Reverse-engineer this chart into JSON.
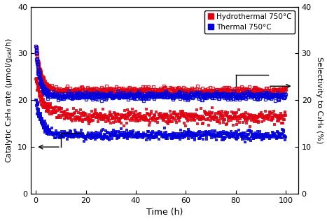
{
  "title": "",
  "xlabel": "Time (h)",
  "ylabel_left": "Catalytic C₂H₆ rate (μmol/g$_{cat}$/h)",
  "ylabel_right": "Selectivity to C₂H₆ (%)",
  "xlim": [
    -2,
    105
  ],
  "ylim_left": [
    0,
    40
  ],
  "ylim_right": [
    0,
    40
  ],
  "xticks": [
    0,
    20,
    40,
    60,
    80,
    100
  ],
  "yticks_left": [
    0,
    10,
    20,
    30,
    40
  ],
  "yticks_right": [
    0,
    10,
    20,
    30,
    40
  ],
  "legend_labels": [
    "Hydrothermal 750°C",
    "Thermal 750°C"
  ],
  "colors": {
    "hydrothermal": "#e00010",
    "thermal": "#0000dd"
  },
  "figsize": [
    4.67,
    3.16
  ],
  "dpi": 100
}
